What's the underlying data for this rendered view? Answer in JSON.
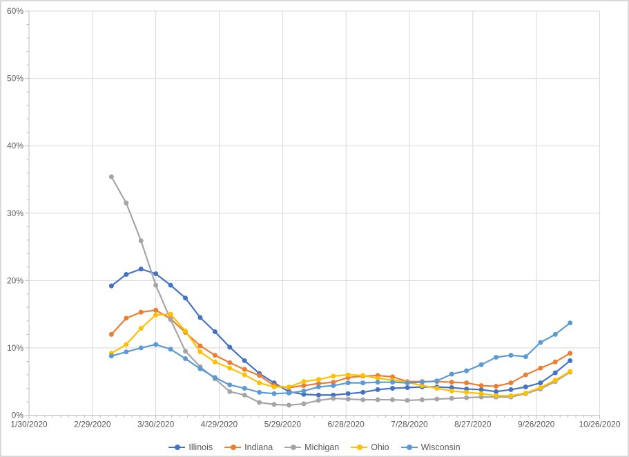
{
  "chart_data": {
    "type": "line",
    "title": "",
    "x_axis_tick_labels": [
      "1/30/2020",
      "2/29/2020",
      "3/30/2020",
      "4/29/2020",
      "5/29/2020",
      "6/28/2020",
      "7/28/2020",
      "8/27/2020",
      "9/26/2020",
      "10/26/2020"
    ],
    "x_axis_tick_day_offsets": [
      0,
      30,
      60,
      90,
      120,
      150,
      180,
      210,
      240,
      270
    ],
    "x_axis_range_days": [
      0,
      270
    ],
    "y_axis_tick_labels": [
      "0%",
      "10%",
      "20%",
      "30%",
      "40%",
      "50%",
      "60%"
    ],
    "y_axis_tick_values": [
      0,
      10,
      20,
      30,
      40,
      50,
      60
    ],
    "ylim": [
      0,
      60
    ],
    "grid": true,
    "legend_position": "bottom",
    "x_week_dates": [
      "3/9/2020",
      "3/16/2020",
      "3/23/2020",
      "3/30/2020",
      "4/6/2020",
      "4/13/2020",
      "4/20/2020",
      "4/27/2020",
      "5/4/2020",
      "5/11/2020",
      "5/18/2020",
      "5/25/2020",
      "6/1/2020",
      "6/8/2020",
      "6/15/2020",
      "6/22/2020",
      "6/29/2020",
      "7/6/2020",
      "7/13/2020",
      "7/20/2020",
      "7/27/2020",
      "8/3/2020",
      "8/10/2020",
      "8/17/2020",
      "8/24/2020",
      "8/31/2020",
      "9/7/2020",
      "9/14/2020",
      "9/21/2020",
      "9/28/2020",
      "10/5/2020",
      "10/12/2020"
    ],
    "x_week_day_offsets": [
      39,
      46,
      53,
      60,
      67,
      74,
      81,
      88,
      95,
      102,
      109,
      116,
      123,
      130,
      137,
      144,
      151,
      158,
      165,
      172,
      179,
      186,
      193,
      200,
      207,
      214,
      221,
      228,
      235,
      242,
      249,
      256
    ],
    "series": [
      {
        "name": "Illinois",
        "color": "#4472C4",
        "values": [
          19.2,
          20.9,
          21.7,
          21.0,
          19.3,
          17.4,
          14.5,
          12.4,
          10.1,
          8.1,
          6.2,
          4.8,
          3.5,
          3.1,
          3.0,
          3.0,
          3.2,
          3.4,
          3.8,
          4.0,
          4.1,
          4.2,
          4.2,
          4.1,
          3.9,
          3.8,
          3.5,
          3.8,
          4.2,
          4.8,
          6.3,
          8.1
        ]
      },
      {
        "name": "Indiana",
        "color": "#ED7D31",
        "values": [
          12.0,
          14.4,
          15.3,
          15.6,
          14.3,
          12.3,
          10.3,
          8.9,
          7.8,
          6.8,
          5.9,
          4.4,
          4.1,
          4.4,
          4.7,
          4.9,
          5.6,
          5.8,
          5.9,
          5.7,
          5.0,
          5.0,
          5.0,
          4.9,
          4.8,
          4.4,
          4.3,
          4.8,
          6.0,
          7.0,
          7.9,
          9.2
        ]
      },
      {
        "name": "Michigan",
        "color": "#A5A5A5",
        "values": [
          35.4,
          31.5,
          25.9,
          19.3,
          14.2,
          9.5,
          7.2,
          5.4,
          3.5,
          3.0,
          1.9,
          1.6,
          1.5,
          1.7,
          2.2,
          2.5,
          2.4,
          2.3,
          2.3,
          2.3,
          2.2,
          2.3,
          2.4,
          2.5,
          2.6,
          2.7,
          2.7,
          2.7,
          3.2,
          3.9,
          5.0,
          6.4
        ]
      },
      {
        "name": "Ohio",
        "color": "#FFC000",
        "values": [
          9.2,
          10.5,
          12.9,
          14.9,
          15.0,
          12.5,
          9.4,
          7.9,
          7.0,
          6.0,
          4.8,
          4.2,
          4.2,
          5.0,
          5.3,
          5.8,
          6.0,
          5.9,
          5.5,
          5.2,
          4.9,
          4.4,
          4.0,
          3.6,
          3.4,
          3.2,
          2.9,
          2.9,
          3.3,
          4.1,
          5.2,
          6.5
        ]
      },
      {
        "name": "Wisconsin",
        "color": "#5B9BD5",
        "values": [
          8.8,
          9.4,
          10.0,
          10.5,
          9.8,
          8.4,
          6.9,
          5.6,
          4.5,
          4.0,
          3.4,
          3.2,
          3.3,
          3.6,
          4.2,
          4.4,
          4.8,
          4.8,
          4.9,
          4.9,
          4.8,
          4.9,
          5.1,
          6.1,
          6.6,
          7.5,
          8.6,
          8.9,
          8.7,
          10.8,
          12.0,
          13.7
        ]
      }
    ]
  },
  "styles": {
    "background": "#FFFFFF",
    "border_color": "#D9D9D9",
    "grid_color": "#D9D9D9",
    "axis_color": "#BFBFBF",
    "label_color": "#595959"
  }
}
